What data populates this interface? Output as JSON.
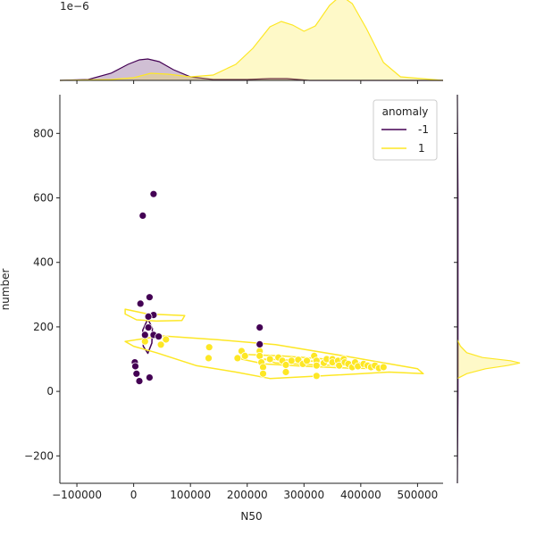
{
  "chart_data": {
    "type": "scatter",
    "xlabel": "N50",
    "ylabel": "number",
    "xlim": [
      -130000,
      545000
    ],
    "ylim": [
      -285,
      920
    ],
    "x_ticks": [
      -100000,
      0,
      100000,
      200000,
      300000,
      400000,
      500000
    ],
    "x_tick_labels": [
      "−100000",
      "0",
      "100000",
      "200000",
      "300000",
      "400000",
      "500000"
    ],
    "y_ticks": [
      -200,
      0,
      200,
      400,
      600,
      800
    ],
    "y_tick_labels": [
      "−200",
      "0",
      "200",
      "400",
      "600",
      "800"
    ],
    "top_marginal_multiplier": "1e−6",
    "top_marginal_ylim": [
      0,
      4.5
    ],
    "legend": {
      "title": "anomaly",
      "placement": "top-right",
      "entries": [
        {
          "label": "-1",
          "color": "#440154"
        },
        {
          "label": "1",
          "color": "#fde725"
        }
      ]
    },
    "series": [
      {
        "name": "-1",
        "color": "#440154",
        "points": [
          [
            35000,
            612
          ],
          [
            16000,
            545
          ],
          [
            28000,
            292
          ],
          [
            12000,
            272
          ],
          [
            35000,
            237
          ],
          [
            26000,
            232
          ],
          [
            26000,
            198
          ],
          [
            222000,
            198
          ],
          [
            20000,
            175
          ],
          [
            35000,
            175
          ],
          [
            44000,
            170
          ],
          [
            222000,
            146
          ],
          [
            2000,
            90
          ],
          [
            3000,
            78
          ],
          [
            5000,
            55
          ],
          [
            28000,
            43
          ],
          [
            10000,
            32
          ]
        ]
      },
      {
        "name": "1",
        "color": "#fde725",
        "points": [
          [
            57000,
            161
          ],
          [
            48000,
            145
          ],
          [
            20000,
            155
          ],
          [
            133000,
            137
          ],
          [
            132000,
            103
          ],
          [
            183000,
            103
          ],
          [
            190000,
            125
          ],
          [
            196000,
            110
          ],
          [
            222000,
            125
          ],
          [
            222000,
            110
          ],
          [
            225000,
            90
          ],
          [
            228000,
            75
          ],
          [
            228000,
            55
          ],
          [
            240000,
            100
          ],
          [
            255000,
            105
          ],
          [
            262000,
            95
          ],
          [
            268000,
            82
          ],
          [
            268000,
            60
          ],
          [
            278000,
            95
          ],
          [
            290000,
            98
          ],
          [
            298000,
            85
          ],
          [
            305000,
            95
          ],
          [
            318000,
            110
          ],
          [
            322000,
            95
          ],
          [
            322000,
            80
          ],
          [
            322000,
            48
          ],
          [
            335000,
            88
          ],
          [
            340000,
            100
          ],
          [
            350000,
            100
          ],
          [
            350000,
            90
          ],
          [
            360000,
            95
          ],
          [
            362000,
            80
          ],
          [
            370000,
            100
          ],
          [
            372000,
            90
          ],
          [
            378000,
            85
          ],
          [
            385000,
            75
          ],
          [
            390000,
            90
          ],
          [
            395000,
            78
          ],
          [
            405000,
            85
          ],
          [
            412000,
            80
          ],
          [
            418000,
            75
          ],
          [
            425000,
            80
          ],
          [
            432000,
            72
          ],
          [
            440000,
            75
          ]
        ]
      }
    ],
    "contours": [
      {
        "series": "-1",
        "points": [
          [
            25000,
            225
          ],
          [
            33000,
            195
          ],
          [
            32000,
            150
          ],
          [
            25000,
            118
          ],
          [
            17000,
            140
          ],
          [
            16000,
            190
          ]
        ]
      },
      {
        "series": "1",
        "points": [
          [
            -15000,
            255
          ],
          [
            25000,
            240
          ],
          [
            90000,
            235
          ],
          [
            85000,
            220
          ],
          [
            40000,
            218
          ],
          [
            5000,
            222
          ],
          [
            -15000,
            240
          ]
        ]
      },
      {
        "series": "1",
        "points": [
          [
            -15000,
            155
          ],
          [
            50000,
            172
          ],
          [
            150000,
            160
          ],
          [
            250000,
            145
          ],
          [
            370000,
            110
          ],
          [
            500000,
            70
          ],
          [
            510000,
            55
          ],
          [
            450000,
            60
          ],
          [
            330000,
            48
          ],
          [
            240000,
            40
          ],
          [
            180000,
            60
          ],
          [
            110000,
            80
          ],
          [
            40000,
            120
          ],
          [
            0,
            140
          ]
        ]
      },
      {
        "series": "1",
        "points": [
          [
            190000,
            115
          ],
          [
            260000,
            110
          ],
          [
            340000,
            100
          ],
          [
            440000,
            80
          ],
          [
            445000,
            70
          ],
          [
            380000,
            72
          ],
          [
            300000,
            78
          ],
          [
            230000,
            85
          ],
          [
            190000,
            100
          ]
        ]
      },
      {
        "series": "1",
        "points": [
          [
            230000,
            100
          ],
          [
            300000,
            95
          ],
          [
            380000,
            88
          ],
          [
            390000,
            80
          ],
          [
            320000,
            82
          ],
          [
            250000,
            88
          ]
        ]
      }
    ],
    "top_density": [
      {
        "series": "-1",
        "color": "#440154",
        "x": [
          -130000,
          -80000,
          -40000,
          -10000,
          10000,
          25000,
          45000,
          70000,
          100000,
          140000,
          200000,
          240000,
          270000,
          310000,
          545000
        ],
        "y": [
          0,
          0.05,
          0.4,
          0.9,
          1.15,
          1.2,
          1.05,
          0.6,
          0.2,
          0.05,
          0.05,
          0.1,
          0.1,
          0,
          0
        ]
      },
      {
        "series": "1",
        "color": "#fde725",
        "x": [
          -130000,
          -40000,
          0,
          30000,
          60000,
          100000,
          140000,
          180000,
          210000,
          240000,
          260000,
          280000,
          300000,
          320000,
          345000,
          365000,
          385000,
          410000,
          440000,
          470000,
          545000
        ],
        "y": [
          0,
          0.05,
          0.15,
          0.4,
          0.35,
          0.2,
          0.3,
          0.9,
          1.8,
          3.0,
          3.3,
          3.1,
          2.75,
          3.05,
          4.2,
          4.75,
          4.3,
          2.9,
          1.0,
          0.2,
          0
        ]
      }
    ],
    "right_density": [
      {
        "series": "-1",
        "color": "#440154",
        "y": [
          920,
          600,
          400,
          200,
          100,
          0,
          -285
        ],
        "x": [
          0,
          0.01,
          0.01,
          0.01,
          0.01,
          0.01,
          0
        ]
      },
      {
        "series": "1",
        "color": "#fde725",
        "y": [
          40,
          55,
          70,
          80,
          88,
          95,
          105,
          120,
          140,
          160
        ],
        "x": [
          0,
          0.15,
          0.45,
          0.8,
          1.0,
          0.85,
          0.4,
          0.15,
          0.05,
          0
        ]
      }
    ]
  }
}
